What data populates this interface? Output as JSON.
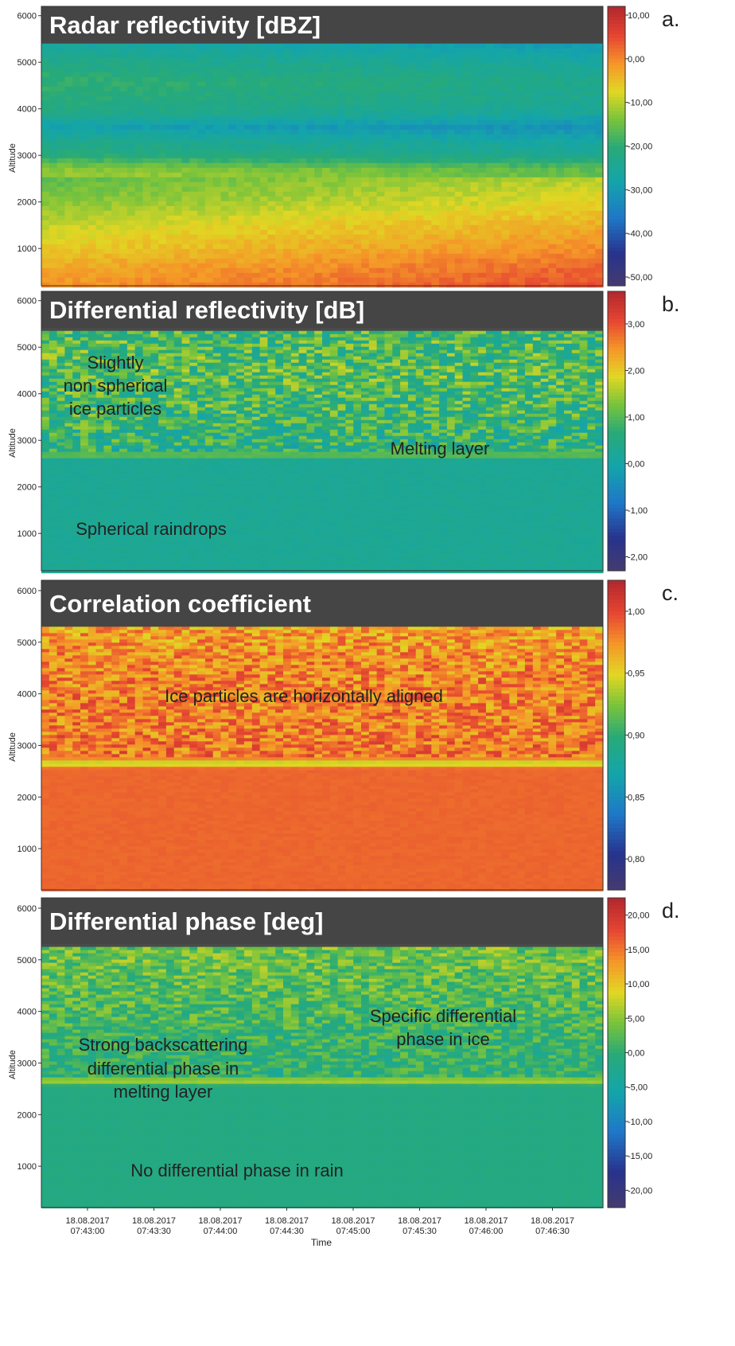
{
  "chart_data": [
    {
      "type": "heatmap",
      "panel_label": "a.",
      "title": "Radar reflectivity [dBZ]",
      "ylabel": "Altitude",
      "ylim": [
        200,
        6200
      ],
      "yticks": [
        1000,
        2000,
        3000,
        4000,
        5000,
        6000
      ],
      "colorbar": {
        "min": -52,
        "max": 12,
        "ticks": [
          10,
          0,
          -10,
          -20,
          -30,
          -40,
          -50
        ],
        "tick_labels": [
          "10,00",
          "0,00",
          "-10,00",
          "-20,00",
          "-30,00",
          "-40,00",
          "-50,00"
        ]
      },
      "echo_top": 5400,
      "profile": [
        [
          200,
          2
        ],
        [
          600,
          0
        ],
        [
          1000,
          -3
        ],
        [
          1500,
          -6
        ],
        [
          2000,
          -10
        ],
        [
          2400,
          -12
        ],
        [
          2700,
          -14
        ],
        [
          3000,
          -22
        ],
        [
          3300,
          -25
        ],
        [
          3600,
          -30
        ],
        [
          3900,
          -24
        ],
        [
          4200,
          -22
        ],
        [
          4600,
          -21
        ],
        [
          5000,
          -24
        ],
        [
          5400,
          -28
        ]
      ],
      "annotations": []
    },
    {
      "type": "heatmap",
      "panel_label": "b.",
      "title": "Differential reflectivity [dB]",
      "ylabel": "Altitude",
      "ylim": [
        200,
        6200
      ],
      "yticks": [
        1000,
        2000,
        3000,
        4000,
        5000,
        6000
      ],
      "colorbar": {
        "min": -2.3,
        "max": 3.7,
        "ticks": [
          3,
          2,
          1,
          0,
          -1,
          -2
        ],
        "tick_labels": [
          "3,00",
          "2,00",
          "1,00",
          "0,00",
          "-1,00",
          "-2,00"
        ]
      },
      "echo_top": 5350,
      "profile": [
        [
          200,
          0.3
        ],
        [
          2600,
          0.3
        ],
        [
          2680,
          1.5
        ],
        [
          2750,
          0.6
        ],
        [
          3500,
          0.8
        ],
        [
          4500,
          1.0
        ],
        [
          5300,
          0.9
        ]
      ],
      "annotations": [
        "Slightly",
        "non spherical",
        "ice particles",
        "Melting layer",
        "Spherical raindrops"
      ]
    },
    {
      "type": "heatmap",
      "panel_label": "c.",
      "title": "Correlation coefficient",
      "ylabel": "Altitude",
      "ylim": [
        200,
        6200
      ],
      "yticks": [
        1000,
        2000,
        3000,
        4000,
        5000,
        6000
      ],
      "colorbar": {
        "min": 0.775,
        "max": 1.025,
        "ticks": [
          1.0,
          0.95,
          0.9,
          0.85,
          0.8
        ],
        "tick_labels": [
          "1,00",
          "0,95",
          "0,90",
          "0,85",
          "0,80"
        ]
      },
      "echo_top": 5300,
      "profile": [
        [
          200,
          0.99
        ],
        [
          2550,
          0.99
        ],
        [
          2650,
          0.93
        ],
        [
          2750,
          0.985
        ],
        [
          4500,
          0.98
        ],
        [
          5300,
          0.97
        ]
      ],
      "annotations": [
        "Ice particles are horizontally aligned"
      ]
    },
    {
      "type": "heatmap",
      "panel_label": "d.",
      "title": "Differential phase [deg]",
      "ylabel": "Altitude",
      "xlabel": "Time",
      "ylim": [
        200,
        6200
      ],
      "yticks": [
        1000,
        2000,
        3000,
        4000,
        5000,
        6000
      ],
      "x_ticks": [
        {
          "date": "18.08.2017",
          "time": "07:43:00"
        },
        {
          "date": "18.08.2017",
          "time": "07:43:30"
        },
        {
          "date": "18.08.2017",
          "time": "07:44:00"
        },
        {
          "date": "18.08.2017",
          "time": "07:44:30"
        },
        {
          "date": "18.08.2017",
          "time": "07:45:00"
        },
        {
          "date": "18.08.2017",
          "time": "07:45:30"
        },
        {
          "date": "18.08.2017",
          "time": "07:46:00"
        },
        {
          "date": "18.08.2017",
          "time": "07:46:30"
        }
      ],
      "colorbar": {
        "min": -22.5,
        "max": 22.5,
        "ticks": [
          20,
          15,
          10,
          5,
          0,
          -5,
          -10,
          -15,
          -20
        ],
        "tick_labels": [
          "20,00",
          "15,00",
          "10,00",
          "5,00",
          "0,00",
          "-5,00",
          "-10,00",
          "-15,00",
          "-20,00"
        ]
      },
      "echo_top": 5250,
      "profile": [
        [
          200,
          -1
        ],
        [
          2550,
          -1
        ],
        [
          2650,
          8
        ],
        [
          2750,
          0
        ],
        [
          3500,
          1
        ],
        [
          4500,
          3
        ],
        [
          5250,
          4
        ]
      ],
      "annotations": [
        "Strong backscattering",
        "differential phase in",
        "melting layer",
        "Specific differential",
        "phase in ice",
        "No differential phase in rain"
      ]
    }
  ]
}
